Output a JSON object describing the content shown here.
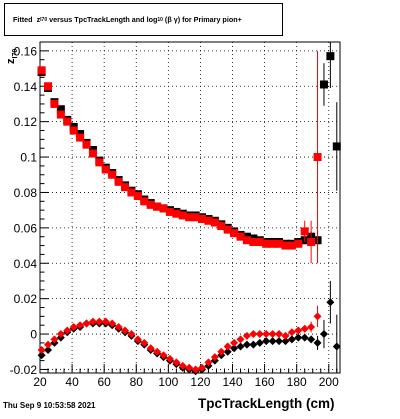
{
  "title": {
    "prefix": "Fitted",
    "z": "z",
    "z_sub": "I70",
    "mid": "versus TpcTrackLength and log",
    "log_sub": "10",
    "suffix": "(β  γ) for Primary pion+"
  },
  "footer_date": "Thu Sep  9 10:53:58 2021",
  "chart_data": {
    "type": "scatter",
    "xlabel": "TpcTrackLength (cm)",
    "ylabel": "z",
    "ylabel_sub": "I70",
    "xlim": [
      20,
      207
    ],
    "ylim": [
      -0.022,
      0.165
    ],
    "xticks": [
      20,
      40,
      60,
      80,
      100,
      120,
      140,
      160,
      180,
      200
    ],
    "yticks": [
      -0.02,
      0,
      0.02,
      0.04,
      0.06,
      0.08,
      0.1,
      0.12,
      0.14,
      0.16
    ],
    "ytick_labels": [
      "-0.02",
      "0",
      "0.02",
      "0.04",
      "0.06",
      "0.08",
      "0.1",
      "0.12",
      "0.14",
      "0.16"
    ],
    "grid": true,
    "series": [
      {
        "marker": "square",
        "color": "#000000",
        "x": [
          21,
          25,
          29,
          33,
          37,
          41,
          45,
          49,
          53,
          57,
          61,
          65,
          69,
          73,
          77,
          81,
          85,
          89,
          93,
          97,
          101,
          105,
          109,
          113,
          117,
          121,
          125,
          129,
          133,
          137,
          141,
          145,
          149,
          153,
          157,
          161,
          165,
          169,
          173,
          177,
          181,
          185,
          189,
          193,
          197,
          201,
          205
        ],
        "y": [
          0.148,
          0.139,
          0.131,
          0.127,
          0.121,
          0.117,
          0.113,
          0.108,
          0.104,
          0.098,
          0.094,
          0.091,
          0.087,
          0.084,
          0.081,
          0.079,
          0.076,
          0.074,
          0.072,
          0.071,
          0.07,
          0.069,
          0.068,
          0.067,
          0.067,
          0.066,
          0.065,
          0.064,
          0.062,
          0.06,
          0.058,
          0.056,
          0.055,
          0.054,
          0.053,
          0.052,
          0.052,
          0.052,
          0.051,
          0.051,
          0.052,
          0.053,
          0.055,
          0.053,
          0.141,
          0.157,
          0.106
        ],
        "yerr": [
          0.001,
          0.001,
          0.001,
          0.001,
          0.001,
          0.001,
          0.001,
          0.001,
          0.001,
          0.001,
          0.001,
          0.001,
          0.001,
          0.001,
          0.001,
          0.001,
          0.001,
          0.001,
          0.001,
          0.001,
          0.001,
          0.001,
          0.001,
          0.001,
          0.001,
          0.001,
          0.001,
          0.001,
          0.001,
          0.001,
          0.001,
          0.001,
          0.001,
          0.001,
          0.001,
          0.001,
          0.001,
          0.001,
          0.001,
          0.001,
          0.001,
          0.002,
          0.003,
          0.006,
          0.012,
          0.018,
          0.025
        ]
      },
      {
        "marker": "square",
        "color": "#ff0000",
        "x": [
          21,
          25,
          29,
          33,
          37,
          41,
          45,
          49,
          53,
          57,
          61,
          65,
          69,
          73,
          77,
          81,
          85,
          89,
          93,
          97,
          101,
          105,
          109,
          113,
          117,
          121,
          125,
          129,
          133,
          137,
          141,
          145,
          149,
          153,
          157,
          161,
          165,
          169,
          173,
          177,
          181,
          185,
          189,
          193
        ],
        "y": [
          0.149,
          0.14,
          0.13,
          0.124,
          0.12,
          0.115,
          0.111,
          0.107,
          0.102,
          0.097,
          0.093,
          0.09,
          0.086,
          0.083,
          0.08,
          0.078,
          0.075,
          0.073,
          0.072,
          0.071,
          0.069,
          0.068,
          0.067,
          0.066,
          0.066,
          0.065,
          0.064,
          0.063,
          0.061,
          0.059,
          0.057,
          0.055,
          0.053,
          0.052,
          0.052,
          0.051,
          0.051,
          0.051,
          0.05,
          0.05,
          0.051,
          0.058,
          0.052,
          0.1
        ],
        "yerr": [
          0.001,
          0.001,
          0.001,
          0.001,
          0.001,
          0.001,
          0.001,
          0.001,
          0.001,
          0.001,
          0.001,
          0.001,
          0.001,
          0.001,
          0.001,
          0.001,
          0.001,
          0.001,
          0.001,
          0.001,
          0.001,
          0.001,
          0.001,
          0.001,
          0.001,
          0.001,
          0.001,
          0.001,
          0.001,
          0.001,
          0.001,
          0.001,
          0.001,
          0.001,
          0.001,
          0.001,
          0.001,
          0.001,
          0.001,
          0.001,
          0.002,
          0.006,
          0.012,
          0.06
        ]
      },
      {
        "marker": "diamond",
        "color": "#000000",
        "x": [
          21,
          25,
          29,
          33,
          37,
          41,
          45,
          49,
          53,
          57,
          61,
          65,
          69,
          73,
          77,
          81,
          85,
          89,
          93,
          97,
          101,
          105,
          109,
          113,
          117,
          121,
          125,
          129,
          133,
          137,
          141,
          145,
          149,
          153,
          157,
          161,
          165,
          169,
          173,
          177,
          181,
          185,
          189,
          193,
          197,
          201,
          205
        ],
        "y": [
          -0.012,
          -0.009,
          -0.005,
          -0.002,
          0.001,
          0.003,
          0.004,
          0.006,
          0.006,
          0.006,
          0.006,
          0.005,
          0.003,
          0.001,
          -0.001,
          -0.004,
          -0.006,
          -0.009,
          -0.011,
          -0.013,
          -0.015,
          -0.017,
          -0.019,
          -0.02,
          -0.021,
          -0.02,
          -0.018,
          -0.015,
          -0.012,
          -0.01,
          -0.008,
          -0.007,
          -0.006,
          -0.006,
          -0.005,
          -0.004,
          -0.004,
          -0.004,
          -0.004,
          -0.003,
          -0.002,
          -0.002,
          -0.003,
          -0.005,
          0.0,
          0.018,
          -0.007
        ],
        "yerr": [
          0.001,
          0.001,
          0.001,
          0.001,
          0.001,
          0.001,
          0.001,
          0.001,
          0.001,
          0.001,
          0.001,
          0.001,
          0.001,
          0.001,
          0.001,
          0.001,
          0.001,
          0.001,
          0.001,
          0.001,
          0.001,
          0.001,
          0.001,
          0.001,
          0.001,
          0.001,
          0.001,
          0.001,
          0.001,
          0.001,
          0.001,
          0.001,
          0.001,
          0.001,
          0.001,
          0.001,
          0.001,
          0.001,
          0.001,
          0.001,
          0.001,
          0.001,
          0.002,
          0.004,
          0.008,
          0.012,
          0.018
        ]
      },
      {
        "marker": "diamond",
        "color": "#ff0000",
        "x": [
          21,
          25,
          29,
          33,
          37,
          41,
          45,
          49,
          53,
          57,
          61,
          65,
          69,
          73,
          77,
          81,
          85,
          89,
          93,
          97,
          101,
          105,
          109,
          113,
          117,
          121,
          125,
          129,
          133,
          137,
          141,
          145,
          149,
          153,
          157,
          161,
          165,
          169,
          173,
          177,
          181,
          185,
          189,
          193
        ],
        "y": [
          -0.009,
          -0.006,
          -0.003,
          0.0,
          0.002,
          0.004,
          0.005,
          0.006,
          0.007,
          0.007,
          0.007,
          0.006,
          0.004,
          0.002,
          0.0,
          -0.003,
          -0.005,
          -0.008,
          -0.01,
          -0.012,
          -0.014,
          -0.016,
          -0.018,
          -0.019,
          -0.02,
          -0.019,
          -0.016,
          -0.013,
          -0.01,
          -0.007,
          -0.005,
          -0.003,
          -0.001,
          0.0,
          0.0,
          0.0,
          0.0,
          0.0,
          -0.001,
          0.001,
          0.002,
          0.003,
          0.004,
          0.01
        ],
        "yerr": [
          0.001,
          0.001,
          0.001,
          0.001,
          0.001,
          0.001,
          0.001,
          0.001,
          0.001,
          0.001,
          0.001,
          0.001,
          0.001,
          0.001,
          0.001,
          0.001,
          0.001,
          0.001,
          0.001,
          0.001,
          0.001,
          0.001,
          0.001,
          0.001,
          0.001,
          0.001,
          0.001,
          0.001,
          0.001,
          0.001,
          0.001,
          0.001,
          0.001,
          0.001,
          0.001,
          0.001,
          0.001,
          0.001,
          0.001,
          0.001,
          0.001,
          0.002,
          0.003,
          0.006
        ]
      }
    ]
  }
}
